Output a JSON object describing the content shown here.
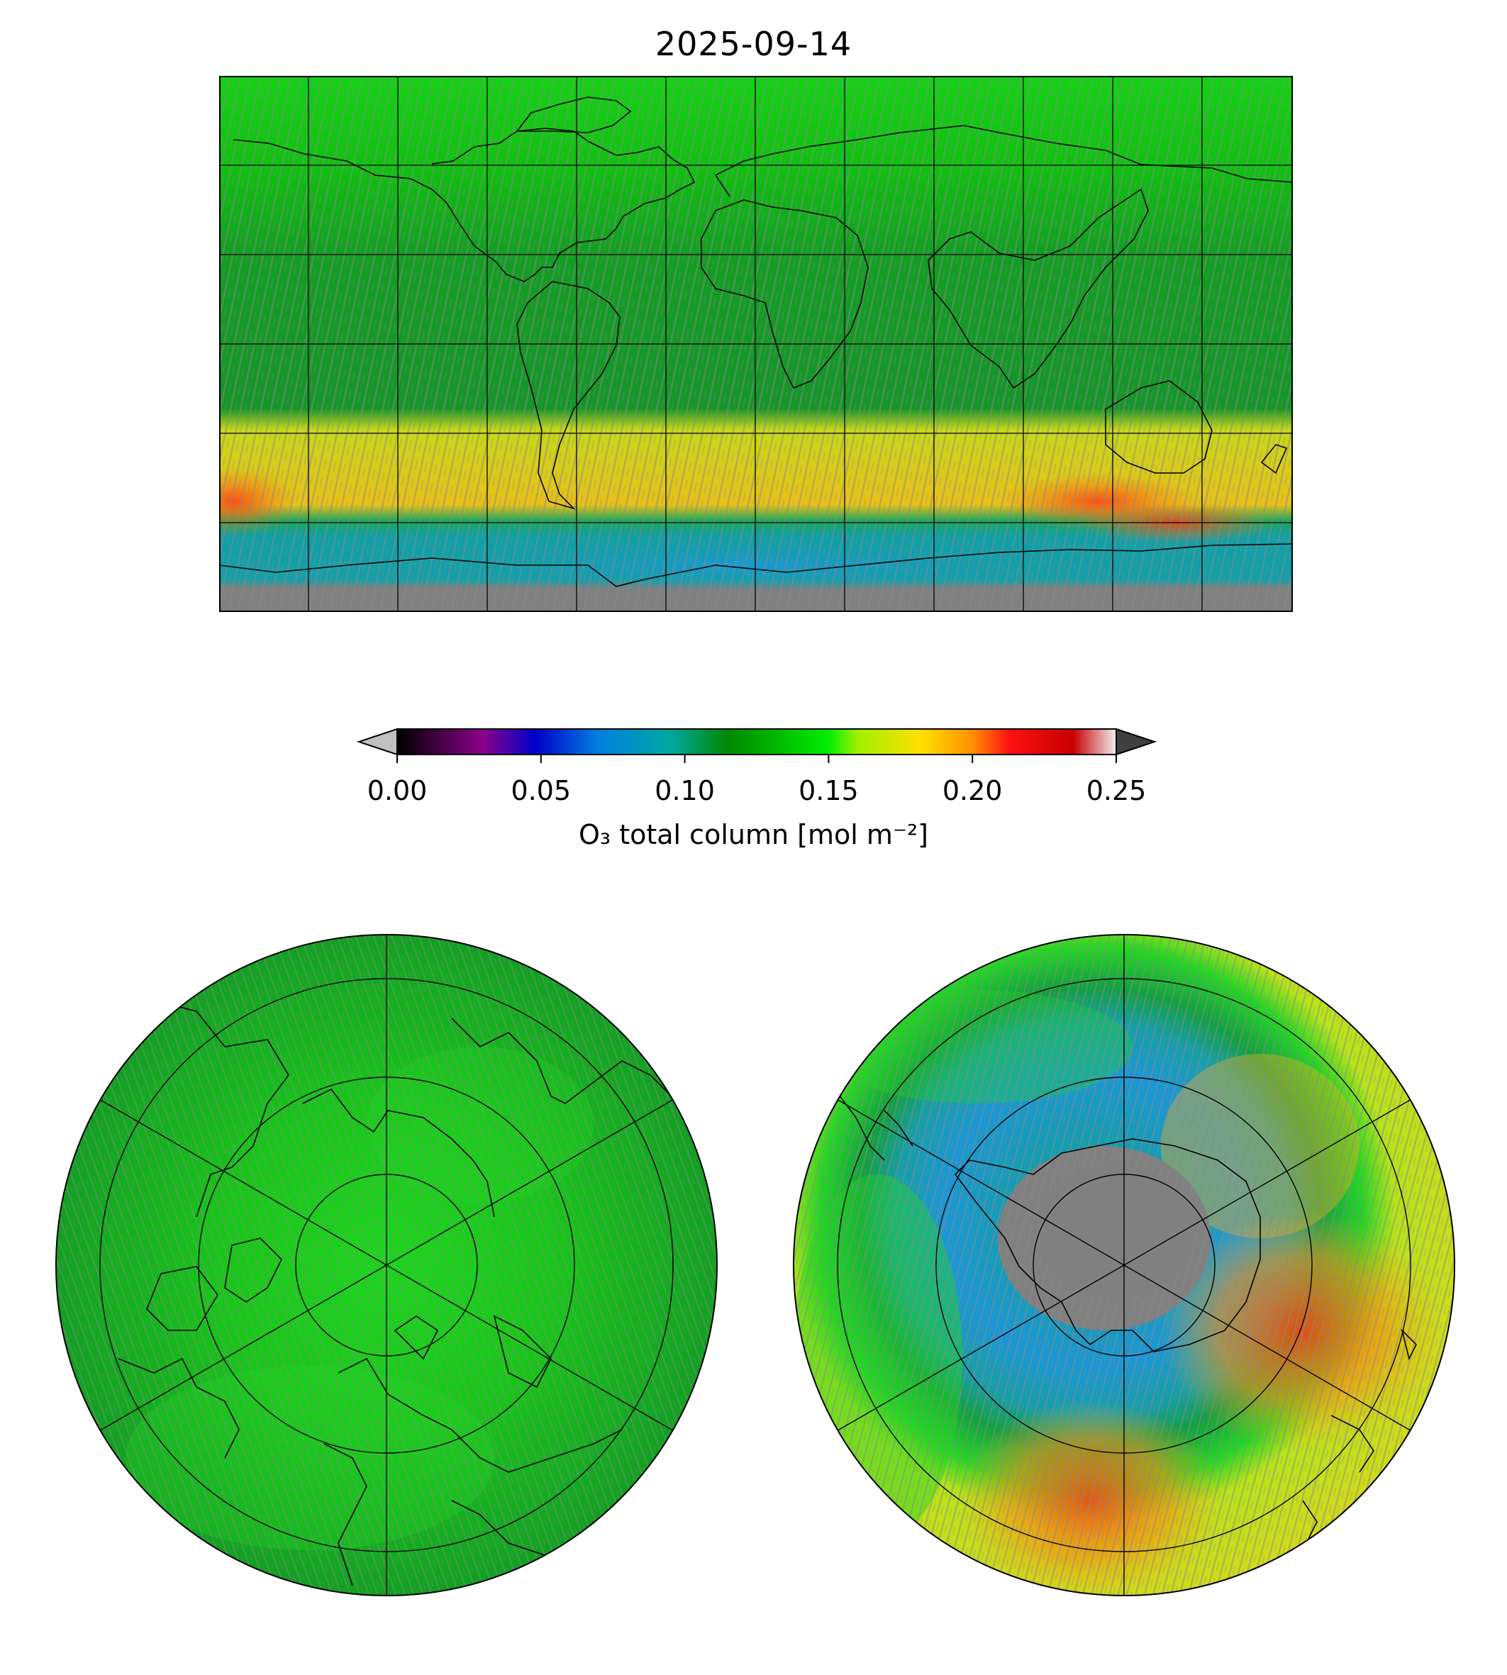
{
  "title": "2025-09-14",
  "colorbar": {
    "label": "O₃ total column [mol m⁻²]",
    "ticks": [
      "0.00",
      "0.05",
      "0.10",
      "0.15",
      "0.20",
      "0.25"
    ],
    "range": [
      0.0,
      0.25
    ],
    "extend": "both",
    "under_color": "#c0c0c0",
    "over_color": "#404040",
    "stops": [
      {
        "v": 0.0,
        "c": "#000000"
      },
      {
        "v": 0.03,
        "c": "#8b008b"
      },
      {
        "v": 0.048,
        "c": "#0000c8"
      },
      {
        "v": 0.07,
        "c": "#0080e0"
      },
      {
        "v": 0.095,
        "c": "#00a8a0"
      },
      {
        "v": 0.115,
        "c": "#008800"
      },
      {
        "v": 0.15,
        "c": "#00ee00"
      },
      {
        "v": 0.16,
        "c": "#a0f000"
      },
      {
        "v": 0.182,
        "c": "#ffe000"
      },
      {
        "v": 0.2,
        "c": "#ff9000"
      },
      {
        "v": 0.213,
        "c": "#ff1010"
      },
      {
        "v": 0.235,
        "c": "#c80000"
      },
      {
        "v": 0.25,
        "c": "#f0f0f0"
      }
    ]
  },
  "maps": {
    "global": {
      "projection": "plate-carree",
      "missing_color": "#808080"
    },
    "north_polar": {
      "projection": "north-polar-stereographic"
    },
    "south_polar": {
      "projection": "south-polar-stereographic"
    }
  }
}
